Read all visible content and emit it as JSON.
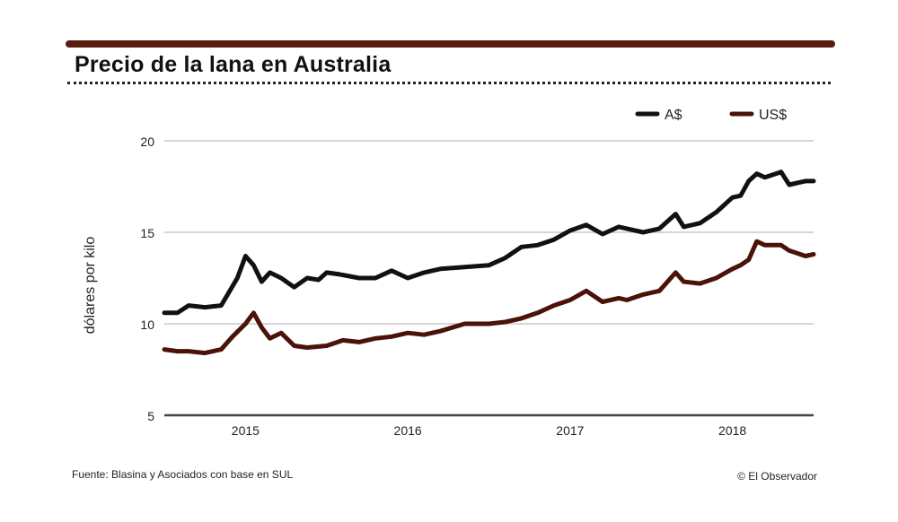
{
  "header": {
    "title": "Precio de la lana en Australia"
  },
  "footer": {
    "source": "Fuente: Blasina y Asociados con base en SUL",
    "credit": "© El Observador"
  },
  "colors": {
    "rule": "#5a1a0e",
    "aud": "#111111",
    "usd": "#4a1208",
    "grid": "#c8c8c8",
    "axis": "#444444"
  },
  "chart_data": {
    "type": "line",
    "title": "Precio de la lana en Australia",
    "xlabel": "",
    "ylabel": "dólares por kilo",
    "ylim": [
      5,
      20
    ],
    "yticks": [
      5,
      10,
      15,
      20
    ],
    "xlim": [
      2014.5,
      2018.5
    ],
    "xticks": [
      {
        "value": 2015,
        "label": "2015"
      },
      {
        "value": 2016,
        "label": "2016"
      },
      {
        "value": 2017,
        "label": "2017"
      },
      {
        "value": 2018,
        "label": "2018"
      }
    ],
    "grid": true,
    "legend_position": "top-right",
    "series": [
      {
        "name": "A$",
        "color": "#111111",
        "x": [
          2014.5,
          2014.58,
          2014.65,
          2014.75,
          2014.85,
          2014.95,
          2015.0,
          2015.05,
          2015.1,
          2015.15,
          2015.22,
          2015.3,
          2015.38,
          2015.45,
          2015.5,
          2015.58,
          2015.7,
          2015.8,
          2015.9,
          2016.0,
          2016.1,
          2016.2,
          2016.35,
          2016.5,
          2016.6,
          2016.7,
          2016.8,
          2016.9,
          2017.0,
          2017.1,
          2017.2,
          2017.3,
          2017.35,
          2017.45,
          2017.55,
          2017.65,
          2017.7,
          2017.8,
          2017.9,
          2018.0,
          2018.05,
          2018.1,
          2018.15,
          2018.2,
          2018.3,
          2018.35,
          2018.45,
          2018.5
        ],
        "values": [
          10.6,
          10.6,
          11.0,
          10.9,
          11.0,
          12.5,
          13.7,
          13.2,
          12.3,
          12.8,
          12.5,
          12.0,
          12.5,
          12.4,
          12.8,
          12.7,
          12.5,
          12.5,
          12.9,
          12.5,
          12.8,
          13.0,
          13.1,
          13.2,
          13.6,
          14.2,
          14.3,
          14.6,
          15.1,
          15.4,
          14.9,
          15.3,
          15.2,
          15.0,
          15.2,
          16.0,
          15.3,
          15.5,
          16.1,
          16.9,
          17.0,
          17.8,
          18.2,
          18.0,
          18.3,
          17.6,
          17.8,
          17.8
        ]
      },
      {
        "name": "US$",
        "color": "#4a1208",
        "x": [
          2014.5,
          2014.58,
          2014.65,
          2014.75,
          2014.85,
          2014.92,
          2015.0,
          2015.05,
          2015.1,
          2015.15,
          2015.22,
          2015.3,
          2015.38,
          2015.5,
          2015.6,
          2015.7,
          2015.8,
          2015.9,
          2016.0,
          2016.1,
          2016.2,
          2016.35,
          2016.5,
          2016.6,
          2016.7,
          2016.8,
          2016.9,
          2017.0,
          2017.1,
          2017.2,
          2017.3,
          2017.35,
          2017.45,
          2017.55,
          2017.65,
          2017.7,
          2017.8,
          2017.9,
          2018.0,
          2018.05,
          2018.1,
          2018.15,
          2018.2,
          2018.3,
          2018.35,
          2018.45,
          2018.5
        ],
        "values": [
          8.6,
          8.5,
          8.5,
          8.4,
          8.6,
          9.3,
          10.0,
          10.6,
          9.8,
          9.2,
          9.5,
          8.8,
          8.7,
          8.8,
          9.1,
          9.0,
          9.2,
          9.3,
          9.5,
          9.4,
          9.6,
          10.0,
          10.0,
          10.1,
          10.3,
          10.6,
          11.0,
          11.3,
          11.8,
          11.2,
          11.4,
          11.3,
          11.6,
          11.8,
          12.8,
          12.3,
          12.2,
          12.5,
          13.0,
          13.2,
          13.5,
          14.5,
          14.3,
          14.3,
          14.0,
          13.7,
          13.8
        ]
      }
    ]
  }
}
